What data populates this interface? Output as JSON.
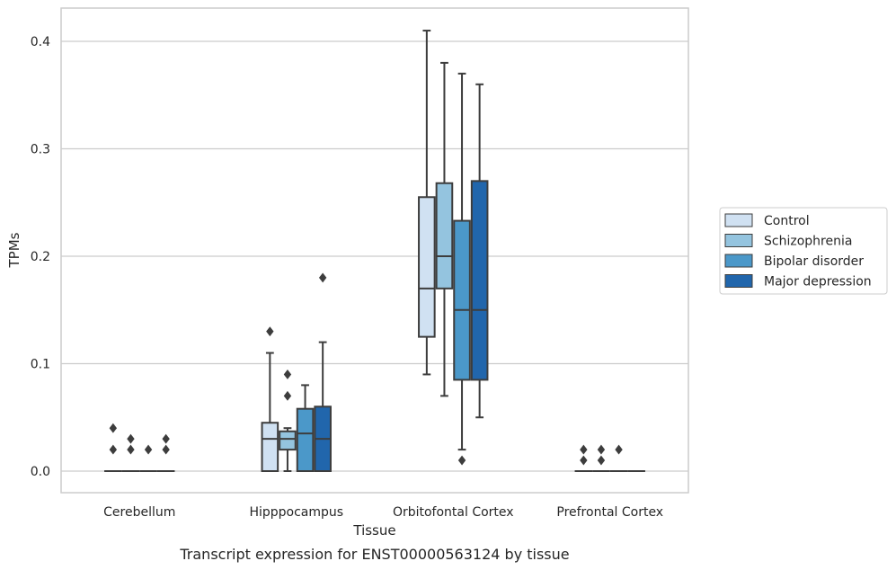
{
  "caption": "Transcript expression for ENST00000563124 by tissue",
  "chart_data": {
    "type": "boxplot",
    "title": "",
    "xlabel": "Tissue",
    "ylabel": "TPMs",
    "ylim": [
      -0.02,
      0.43
    ],
    "yticks": [
      0.0,
      0.1,
      0.2,
      0.3,
      0.4
    ],
    "ytick_labels": [
      "0.0",
      "0.1",
      "0.2",
      "0.3",
      "0.4"
    ],
    "grid": "horizontal",
    "legend_position": "right",
    "categories": [
      "Cerebellum",
      "Hipppocampus",
      "Orbitofontal Cortex",
      "Prefrontal Cortex"
    ],
    "series": [
      {
        "name": "Control",
        "color": "#d0e1f2",
        "boxes": [
          {
            "q1": 0.0,
            "median": 0.0,
            "q3": 0.0,
            "whisker_low": 0.0,
            "whisker_high": 0.0,
            "outliers": [
              0.02,
              0.04
            ]
          },
          {
            "q1": 0.0,
            "median": 0.03,
            "q3": 0.045,
            "whisker_low": 0.0,
            "whisker_high": 0.11,
            "outliers": [
              0.13
            ]
          },
          {
            "q1": 0.125,
            "median": 0.17,
            "q3": 0.255,
            "whisker_low": 0.09,
            "whisker_high": 0.41,
            "outliers": []
          },
          {
            "q1": 0.0,
            "median": 0.0,
            "q3": 0.0,
            "whisker_low": 0.0,
            "whisker_high": 0.0,
            "outliers": [
              0.01,
              0.02
            ]
          }
        ]
      },
      {
        "name": "Schizophrenia",
        "color": "#94c4df",
        "boxes": [
          {
            "q1": 0.0,
            "median": 0.0,
            "q3": 0.0,
            "whisker_low": 0.0,
            "whisker_high": 0.0,
            "outliers": [
              0.02,
              0.03
            ]
          },
          {
            "q1": 0.02,
            "median": 0.03,
            "q3": 0.037,
            "whisker_low": 0.0,
            "whisker_high": 0.04,
            "outliers": [
              0.07,
              0.09
            ]
          },
          {
            "q1": 0.17,
            "median": 0.2,
            "q3": 0.268,
            "whisker_low": 0.07,
            "whisker_high": 0.38,
            "outliers": []
          },
          {
            "q1": 0.0,
            "median": 0.0,
            "q3": 0.0,
            "whisker_low": 0.0,
            "whisker_high": 0.0,
            "outliers": [
              0.01,
              0.02
            ]
          }
        ]
      },
      {
        "name": "Bipolar disorder",
        "color": "#4b98c9",
        "boxes": [
          {
            "q1": 0.0,
            "median": 0.0,
            "q3": 0.0,
            "whisker_low": 0.0,
            "whisker_high": 0.0,
            "outliers": [
              0.02
            ]
          },
          {
            "q1": 0.0,
            "median": 0.035,
            "q3": 0.058,
            "whisker_low": 0.0,
            "whisker_high": 0.08,
            "outliers": []
          },
          {
            "q1": 0.085,
            "median": 0.15,
            "q3": 0.233,
            "whisker_low": 0.02,
            "whisker_high": 0.37,
            "outliers": [
              0.01
            ]
          },
          {
            "q1": 0.0,
            "median": 0.0,
            "q3": 0.0,
            "whisker_low": 0.0,
            "whisker_high": 0.0,
            "outliers": [
              0.02
            ]
          }
        ]
      },
      {
        "name": "Major depression",
        "color": "#2166ac",
        "boxes": [
          {
            "q1": 0.0,
            "median": 0.0,
            "q3": 0.0,
            "whisker_low": 0.0,
            "whisker_high": 0.0,
            "outliers": [
              0.02,
              0.03
            ]
          },
          {
            "q1": 0.0,
            "median": 0.03,
            "q3": 0.06,
            "whisker_low": 0.0,
            "whisker_high": 0.12,
            "outliers": [
              0.18
            ]
          },
          {
            "q1": 0.085,
            "median": 0.15,
            "q3": 0.27,
            "whisker_low": 0.05,
            "whisker_high": 0.36,
            "outliers": []
          },
          {
            "q1": 0.0,
            "median": 0.0,
            "q3": 0.0,
            "whisker_low": 0.0,
            "whisker_high": 0.0,
            "outliers": []
          }
        ]
      }
    ]
  }
}
